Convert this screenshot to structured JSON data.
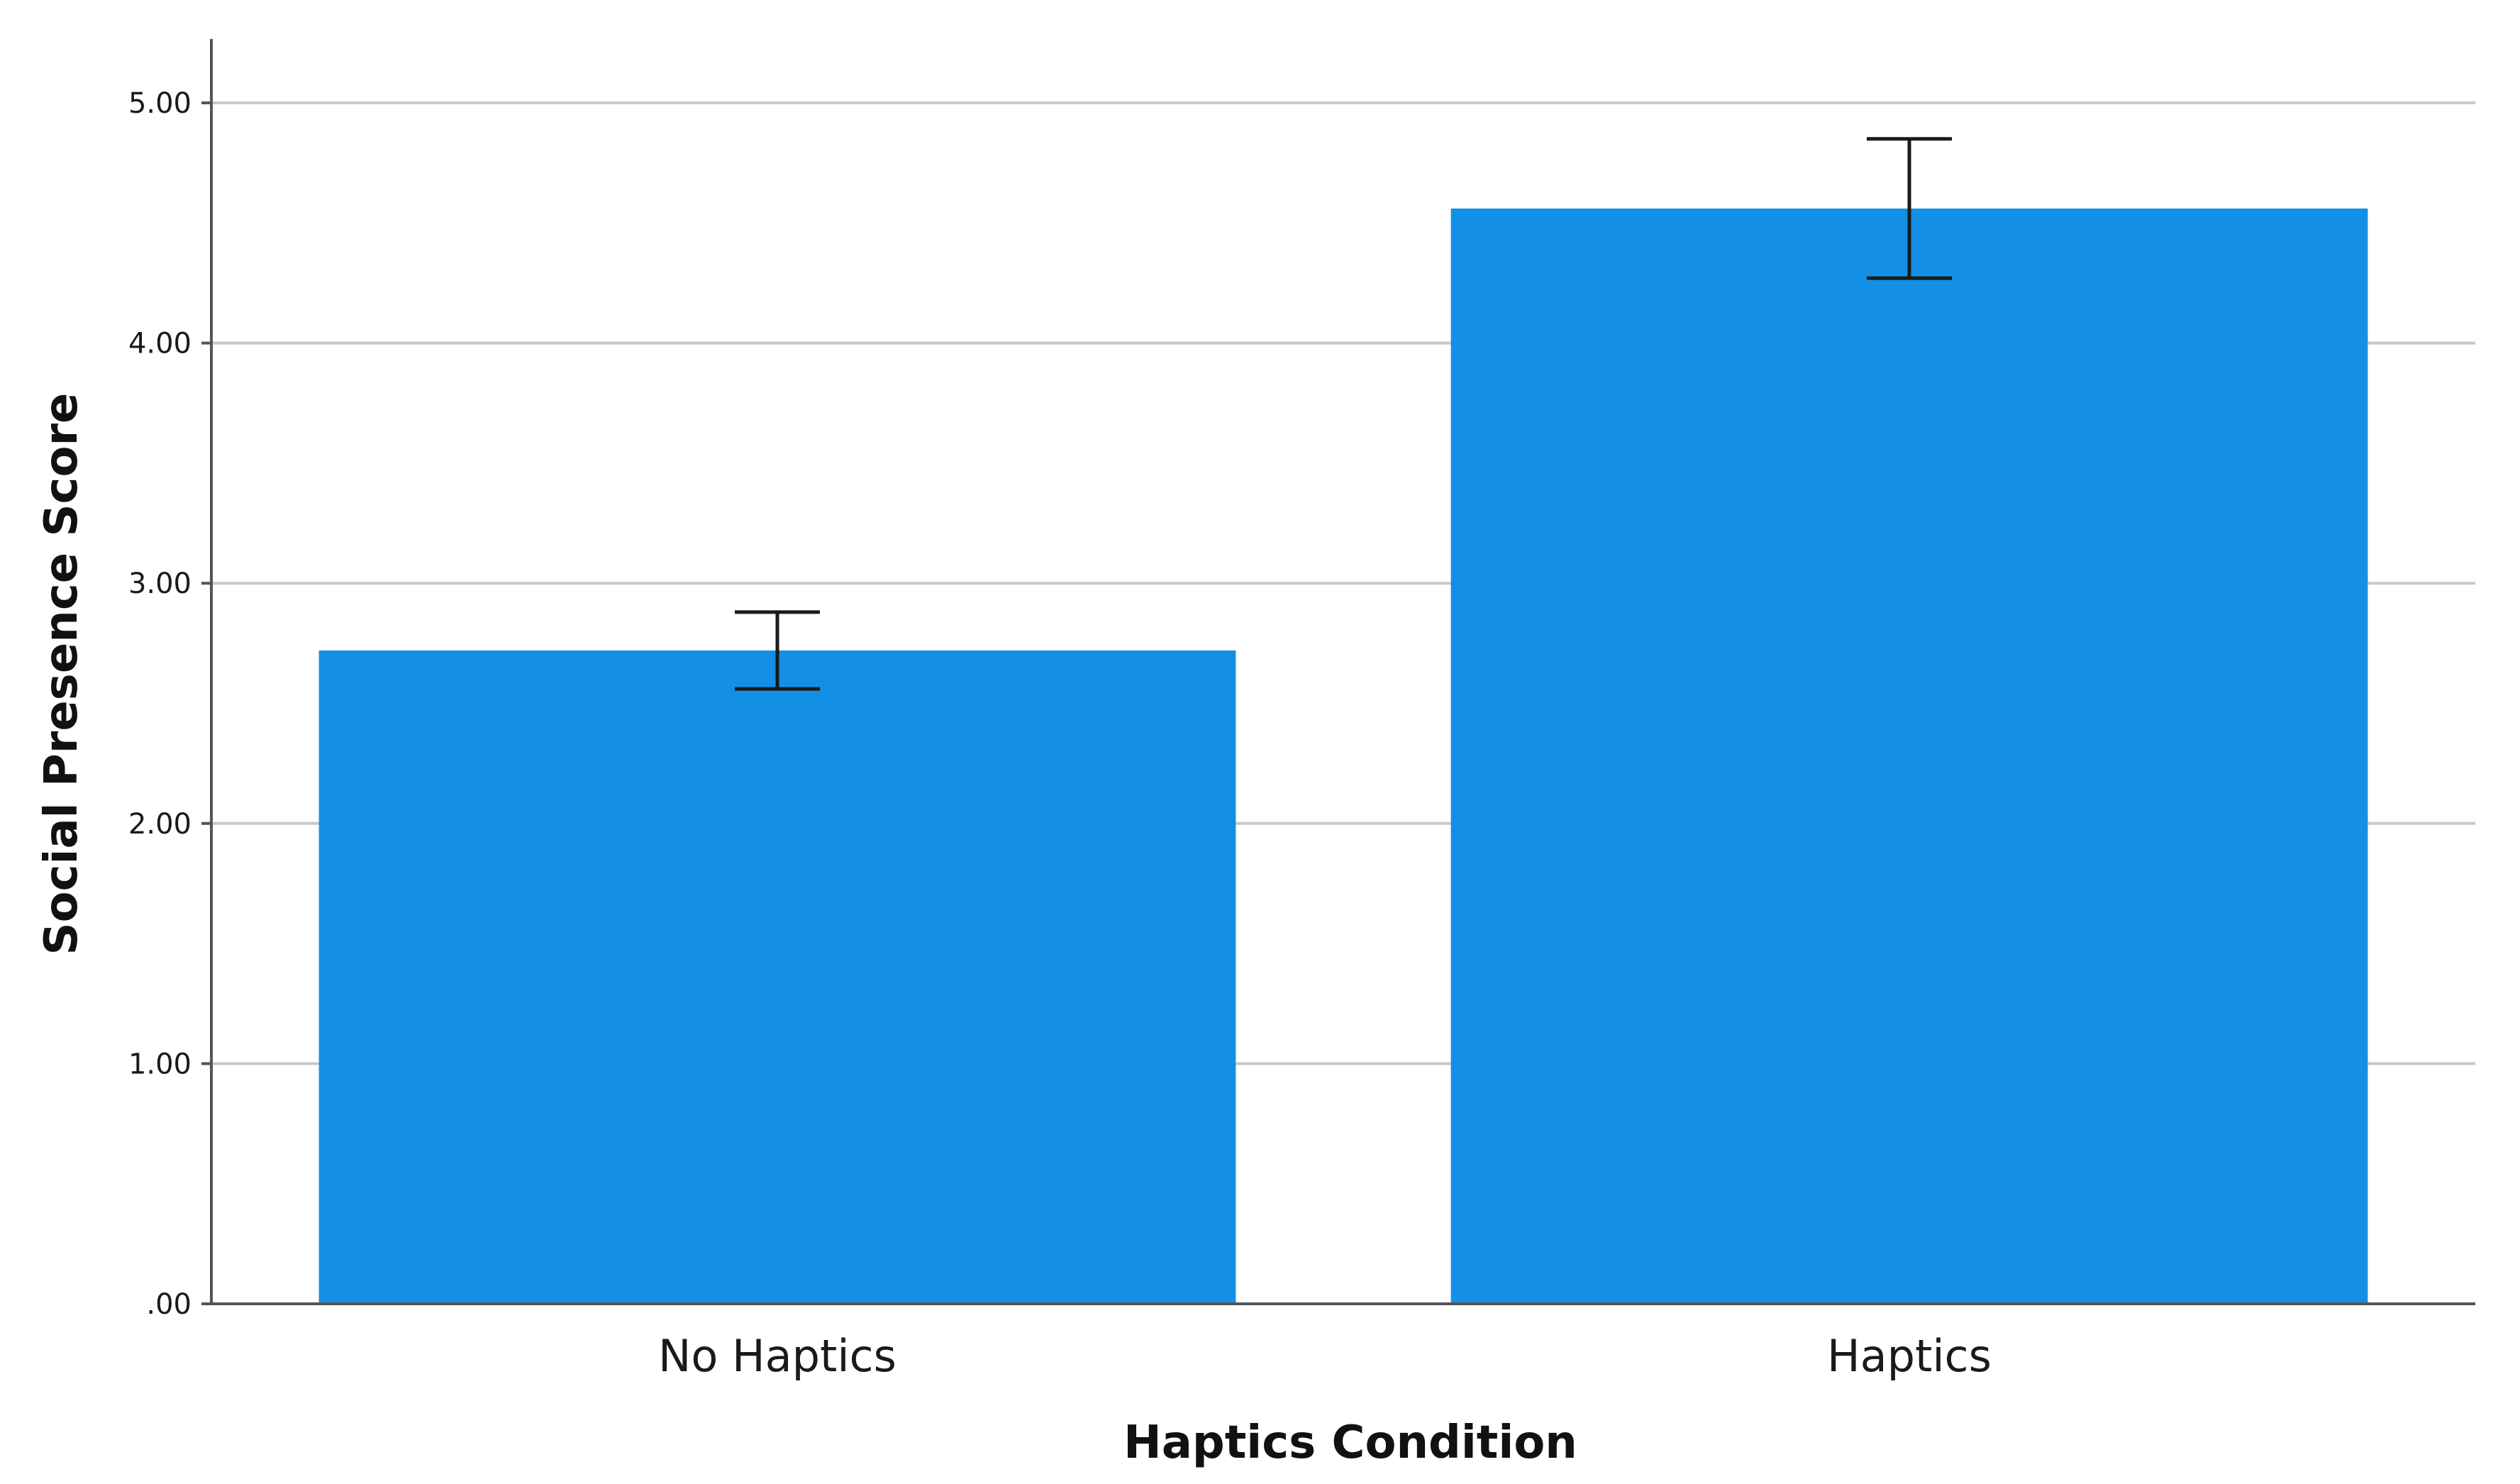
{
  "chart_data": {
    "type": "bar",
    "categories": [
      "No Haptics",
      "Haptics"
    ],
    "values": [
      2.72,
      4.56
    ],
    "error_bars": [
      {
        "low": 2.56,
        "high": 2.88
      },
      {
        "low": 4.27,
        "high": 4.85
      }
    ],
    "xlabel": "Haptics Condition",
    "ylabel": "Social Presence Score",
    "ylim": [
      0,
      5.2
    ],
    "yticks": [
      0,
      1,
      2,
      3,
      4,
      5
    ],
    "ytick_labels": [
      ".00",
      "1.00",
      "2.00",
      "3.00",
      "4.00",
      "5.00"
    ],
    "grid": true,
    "bar_color": "#1390E6",
    "grid_color": "#C8C8C8",
    "axis_color": "#555555",
    "errorbar_color": "#1a1a1a"
  }
}
